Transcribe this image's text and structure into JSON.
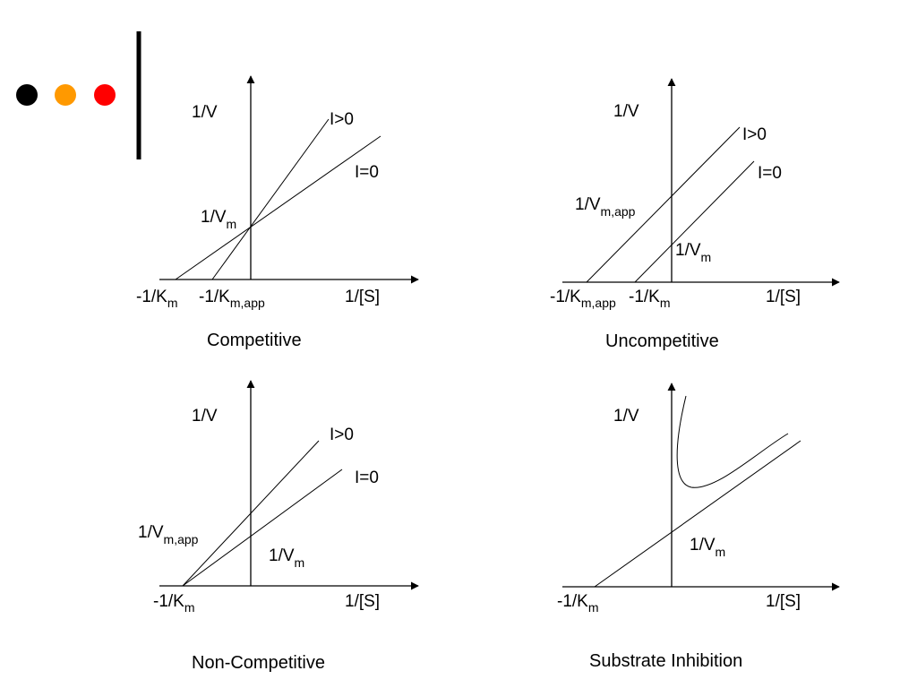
{
  "decor": {
    "dots": [
      {
        "name": "dot-black",
        "color": "#000000"
      },
      {
        "name": "dot-orange",
        "color": "#FF9900"
      },
      {
        "name": "dot-red",
        "color": "#FF0000"
      }
    ],
    "caption_color": "#E00000"
  },
  "panels": {
    "competitive": {
      "caption": "Competitive",
      "y_label": "1/V",
      "x_label": "1/[S]",
      "line_labels": [
        "I>0",
        "I=0"
      ],
      "intercept_label": {
        "base": "1/V",
        "sub": "m"
      },
      "x_intercepts": [
        {
          "base": "-1/K",
          "sub": "m"
        },
        {
          "base": "-1/K",
          "sub": "m,app"
        }
      ]
    },
    "uncompetitive": {
      "caption": "Uncompetitive",
      "y_label": "1/V",
      "x_label": "1/[S]",
      "line_labels": [
        "I>0",
        "I=0"
      ],
      "intercept_labels": [
        {
          "base": "1/V",
          "sub": "m,app"
        },
        {
          "base": "1/V",
          "sub": "m"
        }
      ],
      "x_intercepts": [
        {
          "base": "-1/K",
          "sub": "m,app"
        },
        {
          "base": "-1/K",
          "sub": "m"
        }
      ]
    },
    "noncompetitive": {
      "caption": "Non-Competitive",
      "y_label": "1/V",
      "x_label": "1/[S]",
      "line_labels": [
        "I>0",
        "I=0"
      ],
      "intercept_labels": [
        {
          "base": "1/V",
          "sub": "m,app"
        },
        {
          "base": "1/V",
          "sub": "m"
        }
      ],
      "x_intercept": {
        "base": "-1/K",
        "sub": "m"
      }
    },
    "substrate": {
      "caption": "Substrate Inhibition",
      "y_label": "1/V",
      "x_label": "1/[S]",
      "intercept_label": {
        "base": "1/V",
        "sub": "m"
      },
      "x_intercept": {
        "base": "-1/K",
        "sub": "m"
      }
    }
  }
}
